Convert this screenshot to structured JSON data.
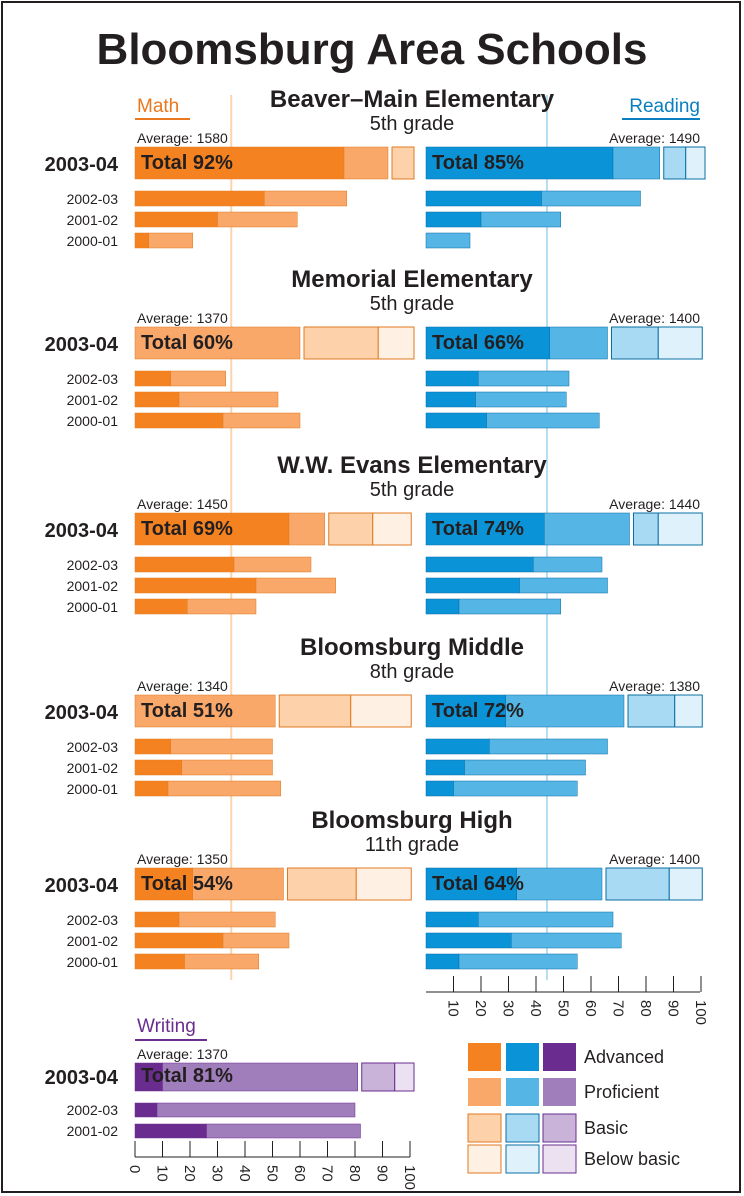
{
  "title": "Bloomsburg Area Schools",
  "subjects": {
    "math": "Math",
    "reading": "Reading",
    "writing": "Writing"
  },
  "current_year": "2003-04",
  "reference_lines": {
    "math": 35,
    "reading": 44
  },
  "schools": [
    {
      "name": "Beaver–Main Elementary",
      "grade": "5th grade",
      "math": {
        "average": "Average: 1580",
        "total": 92,
        "total_label": "Total 92%",
        "advanced": 76,
        "proficient": 16,
        "basic": 8,
        "below_basic": 0,
        "history": [
          {
            "year": "2002-03",
            "advanced": 47,
            "proficient": 30
          },
          {
            "year": "2001-02",
            "advanced": 30,
            "proficient": 29
          },
          {
            "year": "2000-01",
            "advanced": 5,
            "proficient": 16
          }
        ]
      },
      "reading": {
        "average": "Average: 1490",
        "total": 85,
        "total_label": "Total 85%",
        "advanced": 68,
        "proficient": 17,
        "basic": 8,
        "below_basic": 7,
        "history": [
          {
            "year": "2002-03",
            "advanced": 42,
            "proficient": 36
          },
          {
            "year": "2001-02",
            "advanced": 20,
            "proficient": 29
          },
          {
            "year": "2000-01",
            "advanced": 0,
            "proficient": 16
          }
        ]
      }
    },
    {
      "name": "Memorial Elementary",
      "grade": "5th grade",
      "math": {
        "average": "Average: 1370",
        "total": 60,
        "total_label": "Total 60%",
        "advanced": 0,
        "proficient": 60,
        "basic": 27,
        "below_basic": 13,
        "history": [
          {
            "year": "2002-03",
            "advanced": 13,
            "proficient": 20
          },
          {
            "year": "2001-02",
            "advanced": 16,
            "proficient": 36
          },
          {
            "year": "2000-01",
            "advanced": 32,
            "proficient": 28
          }
        ]
      },
      "reading": {
        "average": "Average: 1400",
        "total": 66,
        "total_label": "Total 66%",
        "advanced": 45,
        "proficient": 21,
        "basic": 17,
        "below_basic": 16,
        "history": [
          {
            "year": "2002-03",
            "advanced": 19,
            "proficient": 33
          },
          {
            "year": "2001-02",
            "advanced": 18,
            "proficient": 33
          },
          {
            "year": "2000-01",
            "advanced": 22,
            "proficient": 41
          }
        ]
      }
    },
    {
      "name": "W.W. Evans Elementary",
      "grade": "5th grade",
      "math": {
        "average": "Average: 1450",
        "total": 69,
        "total_label": "Total 69%",
        "advanced": 56,
        "proficient": 13,
        "basic": 16,
        "below_basic": 14,
        "history": [
          {
            "year": "2002-03",
            "advanced": 36,
            "proficient": 28
          },
          {
            "year": "2001-02",
            "advanced": 44,
            "proficient": 29
          },
          {
            "year": "2000-01",
            "advanced": 19,
            "proficient": 25
          }
        ]
      },
      "reading": {
        "average": "Average: 1440",
        "total": 74,
        "total_label": "Total 74%",
        "advanced": 43,
        "proficient": 31,
        "basic": 9,
        "below_basic": 16,
        "history": [
          {
            "year": "2002-03",
            "advanced": 39,
            "proficient": 25
          },
          {
            "year": "2001-02",
            "advanced": 34,
            "proficient": 32
          },
          {
            "year": "2000-01",
            "advanced": 12,
            "proficient": 37
          }
        ]
      }
    },
    {
      "name": "Bloomsburg Middle",
      "grade": "8th grade",
      "math": {
        "average": "Average: 1340",
        "total": 51,
        "total_label": "Total 51%",
        "advanced": 0,
        "proficient": 51,
        "basic": 26,
        "below_basic": 22,
        "history": [
          {
            "year": "2002-03",
            "advanced": 13,
            "proficient": 37
          },
          {
            "year": "2001-02",
            "advanced": 17,
            "proficient": 33
          },
          {
            "year": "2000-01",
            "advanced": 12,
            "proficient": 41
          }
        ]
      },
      "reading": {
        "average": "Average: 1380",
        "total": 72,
        "total_label": "Total 72%",
        "advanced": 29,
        "proficient": 43,
        "basic": 17,
        "below_basic": 10,
        "history": [
          {
            "year": "2002-03",
            "advanced": 23,
            "proficient": 43
          },
          {
            "year": "2001-02",
            "advanced": 14,
            "proficient": 44
          },
          {
            "year": "2000-01",
            "advanced": 10,
            "proficient": 45
          }
        ]
      }
    },
    {
      "name": "Bloomsburg High",
      "grade": "11th grade",
      "math": {
        "average": "Average: 1350",
        "total": 54,
        "total_label": "Total 54%",
        "advanced": 21,
        "proficient": 33,
        "basic": 25,
        "below_basic": 20,
        "history": [
          {
            "year": "2002-03",
            "advanced": 16,
            "proficient": 35
          },
          {
            "year": "2001-02",
            "advanced": 32,
            "proficient": 24
          },
          {
            "year": "2000-01",
            "advanced": 18,
            "proficient": 27
          }
        ]
      },
      "reading": {
        "average": "Average: 1400",
        "total": 64,
        "total_label": "Total 64%",
        "advanced": 33,
        "proficient": 31,
        "basic": 23,
        "below_basic": 12,
        "history": [
          {
            "year": "2002-03",
            "advanced": 19,
            "proficient": 49
          },
          {
            "year": "2001-02",
            "advanced": 31,
            "proficient": 40
          },
          {
            "year": "2000-01",
            "advanced": 12,
            "proficient": 43
          }
        ]
      }
    }
  ],
  "writing": {
    "average": "Average: 1370",
    "total": 81,
    "total_label": "Total 81%",
    "advanced": 10,
    "proficient": 71,
    "basic": 12,
    "below_basic": 7,
    "history": [
      {
        "year": "2002-03",
        "advanced": 8,
        "proficient": 72
      },
      {
        "year": "2001-02",
        "advanced": 26,
        "proficient": 56
      }
    ]
  },
  "axis_ticks": {
    "reading": [
      10,
      20,
      30,
      40,
      50,
      60,
      70,
      80,
      90,
      100
    ],
    "writing": [
      0,
      10,
      20,
      30,
      40,
      50,
      60,
      70,
      80,
      90,
      100
    ]
  },
  "legend": [
    "Advanced",
    "Proficient",
    "Basic",
    "Below basic"
  ]
}
